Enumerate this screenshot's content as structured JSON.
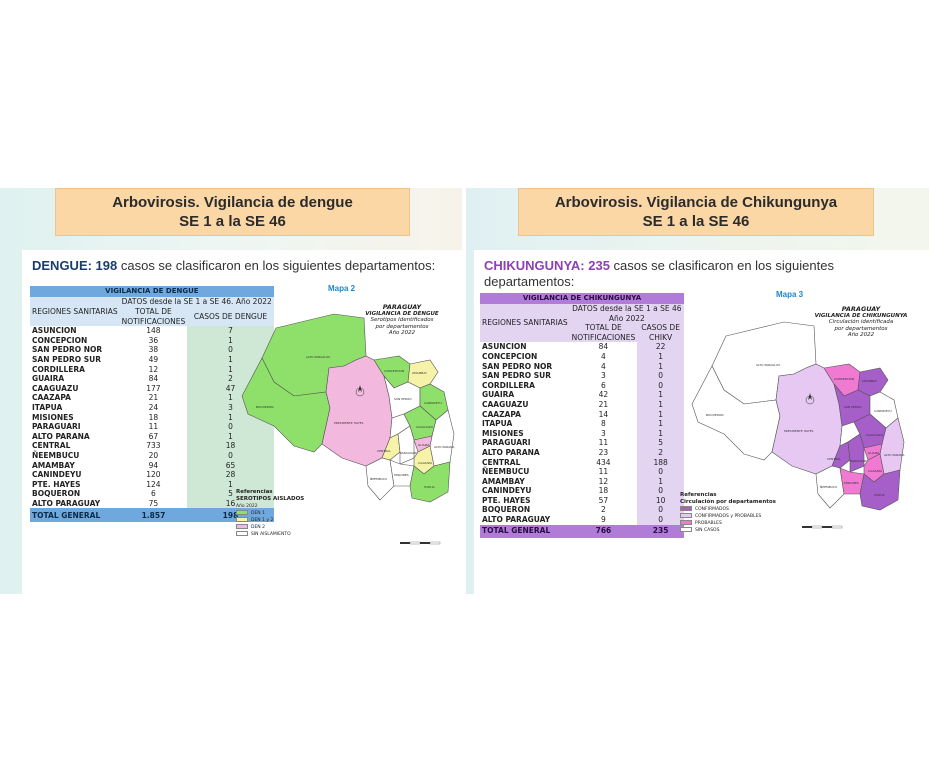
{
  "dengue": {
    "banner_line1": "Arbovirosis. Vigilancia de dengue",
    "banner_line2": "SE 1 a la SE 46",
    "headline_bold": "DENGUE: 198",
    "headline_rest": " casos se clasificaron en los siguientes departamentos:",
    "table": {
      "title": "VIGILANCIA DE DENGUE",
      "col_regions": "REGIONES SANITARIAS",
      "col_group": "DATOS desde la SE 1 a SE 46. Año 2022",
      "col_notif": "TOTAL DE NOTIFICACIONES",
      "col_cases": "CASOS DE DENGUE",
      "rows": [
        {
          "name": "ASUNCION",
          "notif": "148",
          "cases": "7"
        },
        {
          "name": "CONCEPCION",
          "notif": "36",
          "cases": "1"
        },
        {
          "name": "SAN PEDRO NOR",
          "notif": "38",
          "cases": "0"
        },
        {
          "name": "SAN PEDRO SUR",
          "notif": "49",
          "cases": "1"
        },
        {
          "name": "CORDILLERA",
          "notif": "12",
          "cases": "1"
        },
        {
          "name": "GUAIRA",
          "notif": "84",
          "cases": "2"
        },
        {
          "name": "CAAGUAZU",
          "notif": "177",
          "cases": "47"
        },
        {
          "name": "CAAZAPA",
          "notif": "21",
          "cases": "1"
        },
        {
          "name": "ITAPUA",
          "notif": "24",
          "cases": "3"
        },
        {
          "name": "MISIONES",
          "notif": "18",
          "cases": "1"
        },
        {
          "name": "PARAGUARI",
          "notif": "11",
          "cases": "0"
        },
        {
          "name": "ALTO PARANA",
          "notif": "67",
          "cases": "1"
        },
        {
          "name": "CENTRAL",
          "notif": "733",
          "cases": "18"
        },
        {
          "name": "ÑEEMBUCU",
          "notif": "20",
          "cases": "0"
        },
        {
          "name": "AMAMBAY",
          "notif": "94",
          "cases": "65"
        },
        {
          "name": "CANINDEYU",
          "notif": "120",
          "cases": "28"
        },
        {
          "name": "PTE. HAYES",
          "notif": "124",
          "cases": "1"
        },
        {
          "name": "BOQUERON",
          "notif": "6",
          "cases": "5"
        },
        {
          "name": "ALTO PARAGUAY",
          "notif": "75",
          "cases": "16"
        }
      ],
      "total_label": "TOTAL GENERAL",
      "total_notif": "1.857",
      "total_cases": "198"
    },
    "map": {
      "label": "Mapa 2",
      "title1": "PARAGUAY",
      "title2": "VIGILANCIA DE DENGUE",
      "title3": "Serotipos Identificados",
      "title4": "por departamentos",
      "title5": "Año 2022",
      "legend_title": "Referencias",
      "legend_subtitle": "SEROTIPOS AISLADOS",
      "legend_year": "Año 2022",
      "legend_items": [
        {
          "label": "DEN 1",
          "color": "#8fe06a"
        },
        {
          "label": "DEN 1 y 2",
          "color": "#f6f3a8"
        },
        {
          "label": "DEN 2",
          "color": "#f2b8de"
        },
        {
          "label": "SIN AISLAMIENTO",
          "color": "#ffffff"
        }
      ]
    }
  },
  "chik": {
    "banner_line1": "Arbovirosis. Vigilancia de Chikungunya",
    "banner_line2": "SE 1 a la SE 46",
    "headline_bold": "CHIKUNGUNYA: 235",
    "headline_rest": " casos se clasificaron en los siguientes",
    "headline_line2": "departamentos:",
    "table": {
      "title": "VIGILANCIA DE CHIKUNGUNYA",
      "col_regions": "REGIONES SANITARIAS",
      "col_group1": "DATOS desde la SE 1 a SE 46",
      "col_group2": "Año 2022",
      "col_notif": "TOTAL DE NOTIFICACIONES",
      "col_cases": "CASOS DE CHIKV",
      "rows": [
        {
          "name": "ASUNCION",
          "notif": "84",
          "cases": "22"
        },
        {
          "name": "CONCEPCION",
          "notif": "4",
          "cases": "1"
        },
        {
          "name": "SAN PEDRO NOR",
          "notif": "4",
          "cases": "1"
        },
        {
          "name": "SAN PEDRO SUR",
          "notif": "3",
          "cases": "0"
        },
        {
          "name": "CORDILLERA",
          "notif": "6",
          "cases": "0"
        },
        {
          "name": "GUAIRA",
          "notif": "42",
          "cases": "1"
        },
        {
          "name": "CAAGUAZU",
          "notif": "21",
          "cases": "1"
        },
        {
          "name": "CAAZAPA",
          "notif": "14",
          "cases": "1"
        },
        {
          "name": "ITAPUA",
          "notif": "8",
          "cases": "1"
        },
        {
          "name": "MISIONES",
          "notif": "3",
          "cases": "1"
        },
        {
          "name": "PARAGUARI",
          "notif": "11",
          "cases": "5"
        },
        {
          "name": "ALTO PARANA",
          "notif": "23",
          "cases": "2"
        },
        {
          "name": "CENTRAL",
          "notif": "434",
          "cases": "188"
        },
        {
          "name": "ÑEEMBUCU",
          "notif": "11",
          "cases": "0"
        },
        {
          "name": "AMAMBAY",
          "notif": "12",
          "cases": "1"
        },
        {
          "name": "CANINDEYU",
          "notif": "18",
          "cases": "0"
        },
        {
          "name": "PTE. HAYES",
          "notif": "57",
          "cases": "10"
        },
        {
          "name": "BOQUERON",
          "notif": "2",
          "cases": "0"
        },
        {
          "name": "ALTO PARAGUAY",
          "notif": "9",
          "cases": "0"
        }
      ],
      "total_label": "TOTAL GENERAL",
      "total_notif": "766",
      "total_cases": "235"
    },
    "map": {
      "label": "Mapa 3",
      "title1": "PARAGUAY",
      "title2": "VIGILANCIA DE CHIKUNGUNYA",
      "title3": "Circulación identificada",
      "title4": "por departamentos",
      "title5": "Año 2022",
      "legend_title": "Referencias",
      "legend_subtitle": "Circulación por departamentos",
      "legend_items": [
        {
          "label": "CONFIRMADOS",
          "color": "#a65ec8"
        },
        {
          "label": "CONFIRMADOS y PROBABLES",
          "color": "#e6c8f2"
        },
        {
          "label": "PROBABLES",
          "color": "#f07ad2"
        },
        {
          "label": "SIN CASOS",
          "color": "#ffffff"
        }
      ]
    }
  },
  "map_dept_labels": {
    "alto_paraguay": "ALTO PARAGUAY",
    "boqueron": "BOQUERON",
    "pte_hayes": "PRESIDENTE HAYES",
    "concepcion": "CONCEPCION",
    "amambay": "AMAMBAY",
    "san_pedro": "SAN PEDRO",
    "canindeyu": "CANINDEYU",
    "caaguazu": "CAAGUAZU",
    "alto_parana": "ALTO PARANA",
    "central": "CENTRAL",
    "paraguari": "PARAGUARI",
    "guaira": "GUAIRA",
    "caazapa": "CAAZAPA",
    "itapua": "ITAPUA",
    "misiones": "MISIONES",
    "neembucu": "ÑEEMBUCU",
    "cordillera": "CORDILLERA"
  }
}
